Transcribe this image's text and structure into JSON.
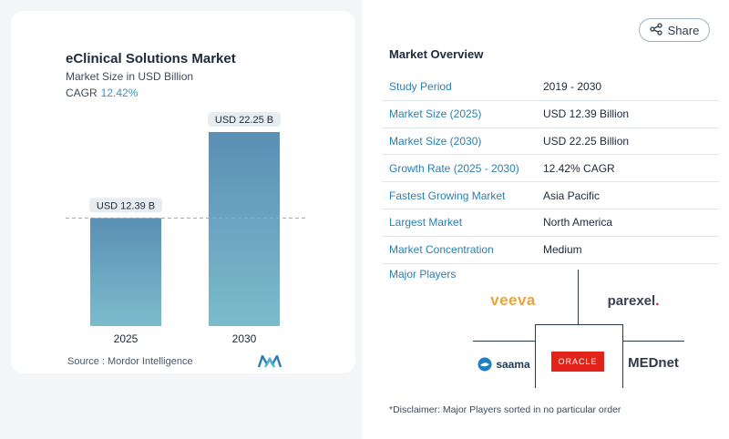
{
  "chart": {
    "title": "eClinical Solutions Market",
    "subtitle": "Market Size in USD Billion",
    "cagr_label": "CAGR",
    "cagr_value": "12.42%",
    "source": "Source :  Mordor Intelligence"
  },
  "chart_data": {
    "type": "bar",
    "title": "eClinical Solutions Market",
    "subtitle": "Market Size in USD Billion",
    "categories": [
      "2025",
      "2030"
    ],
    "values": [
      12.39,
      22.25
    ],
    "data_labels": [
      "USD 12.39 B",
      "USD 22.25 B"
    ],
    "ylim": [
      0,
      22.25
    ],
    "reference_line": 12.39,
    "bar_color_top": "#5b8fb5",
    "bar_color_bottom": "#7bbccb"
  },
  "share": {
    "label": "Share",
    "icon": "share-icon"
  },
  "overview": {
    "title": "Market Overview",
    "rows": [
      {
        "key": "Study Period",
        "value": "2019 - 2030"
      },
      {
        "key": "Market Size (2025)",
        "value": "USD 12.39 Billion"
      },
      {
        "key": "Market Size (2030)",
        "value": "USD 22.25 Billion"
      },
      {
        "key": "Growth Rate (2025 - 2030)",
        "value": "12.42% CAGR"
      },
      {
        "key": "Fastest Growing Market",
        "value": "Asia Pacific"
      },
      {
        "key": "Largest Market",
        "value": "North America"
      },
      {
        "key": "Market Concentration",
        "value": "Medium"
      }
    ]
  },
  "players": {
    "title": "Major Players",
    "logos": [
      "veeva",
      "parexel",
      "saama",
      "ORACLE",
      "MEDnet"
    ]
  },
  "disclaimer": "*Disclaimer: Major Players sorted in no particular order",
  "colors": {
    "accent": "#2a7fb0",
    "oracle": "#e2231a"
  }
}
